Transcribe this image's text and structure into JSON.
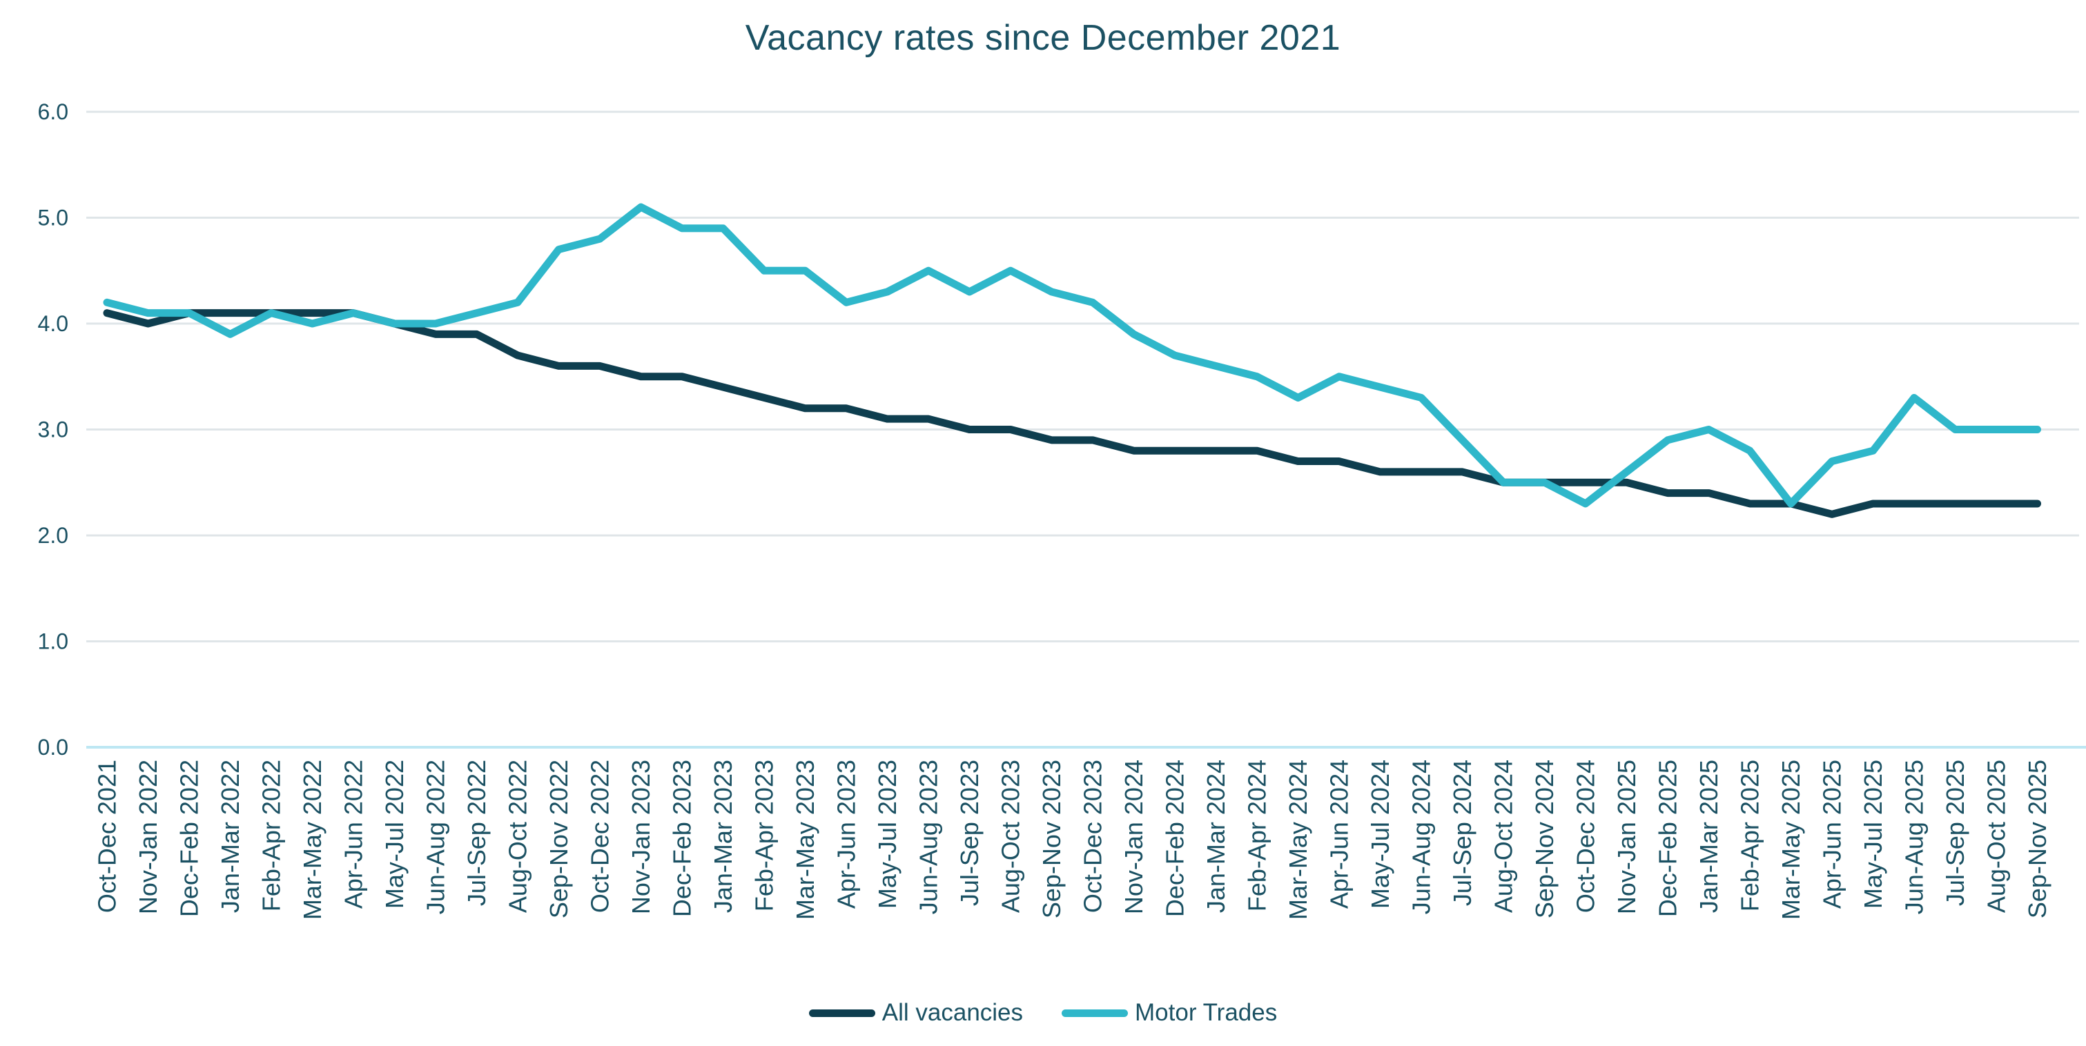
{
  "chart_data": {
    "type": "line",
    "title": "Vacancy rates since December 2021",
    "categories": [
      "Oct-Dec 2021",
      "Nov-Jan 2022",
      "Dec-Feb 2022",
      "Jan-Mar 2022",
      "Feb-Apr 2022",
      "Mar-May 2022",
      "Apr-Jun 2022",
      "May-Jul 2022",
      "Jun-Aug 2022",
      "Jul-Sep 2022",
      "Aug-Oct 2022",
      "Sep-Nov 2022",
      "Oct-Dec 2022",
      "Nov-Jan 2023",
      "Dec-Feb 2023",
      "Jan-Mar 2023",
      "Feb-Apr 2023",
      "Mar-May 2023",
      "Apr-Jun 2023",
      "May-Jul 2023",
      "Jun-Aug 2023",
      "Jul-Sep 2023",
      "Aug-Oct 2023",
      "Sep-Nov 2023",
      "Oct-Dec 2023",
      "Nov-Jan 2024",
      "Dec-Feb 2024",
      "Jan-Mar 2024",
      "Feb-Apr 2024",
      "Mar-May 2024",
      "Apr-Jun 2024",
      "May-Jul 2024",
      "Jun-Aug 2024",
      "Jul-Sep 2024",
      "Aug-Oct 2024",
      "Sep-Nov 2024",
      "Oct-Dec 2024",
      "Nov-Jan 2025",
      "Dec-Feb 2025",
      "Jan-Mar 2025",
      "Feb-Apr 2025",
      "Mar-May 2025",
      "Apr-Jun 2025",
      "May-Jul 2025",
      "Jun-Aug 2025",
      "Jul-Sep 2025",
      "Aug-Oct 2025",
      "Sep-Nov 2025"
    ],
    "series": [
      {
        "name": "All vacancies",
        "color": "#0E3E4F",
        "values": [
          4.1,
          4.0,
          4.1,
          4.1,
          4.1,
          4.1,
          4.1,
          4.0,
          3.9,
          3.9,
          3.7,
          3.6,
          3.6,
          3.5,
          3.5,
          3.4,
          3.3,
          3.2,
          3.2,
          3.1,
          3.1,
          3.0,
          3.0,
          2.9,
          2.9,
          2.8,
          2.8,
          2.8,
          2.8,
          2.7,
          2.7,
          2.6,
          2.6,
          2.6,
          2.5,
          2.5,
          2.5,
          2.5,
          2.4,
          2.4,
          2.3,
          2.3,
          2.2,
          2.3,
          2.3,
          2.3,
          2.3,
          2.3
        ]
      },
      {
        "name": "Motor Trades",
        "color": "#2FB7CA",
        "values": [
          4.2,
          4.1,
          4.1,
          3.9,
          4.1,
          4.0,
          4.1,
          4.0,
          4.0,
          4.1,
          4.2,
          4.7,
          4.8,
          5.1,
          4.9,
          4.9,
          4.5,
          4.5,
          4.2,
          4.3,
          4.5,
          4.3,
          4.5,
          4.3,
          4.2,
          3.9,
          3.7,
          3.6,
          3.5,
          3.3,
          3.5,
          3.4,
          3.3,
          2.9,
          2.5,
          2.5,
          2.3,
          2.6,
          2.9,
          3.0,
          2.8,
          2.3,
          2.7,
          2.8,
          3.3,
          3.0,
          3.0,
          3.0
        ]
      }
    ],
    "xlabel": "",
    "ylabel": "",
    "ylim": [
      0.0,
      6.0
    ],
    "ytick_labels": [
      "0.0",
      "1.0",
      "2.0",
      "3.0",
      "4.0",
      "5.0",
      "6.0"
    ],
    "grid": "horizontal",
    "legend_position": "bottom",
    "text_color": "#1B5163",
    "grid_color": "#DFE5E8",
    "baseline_color": "#BDE7F3",
    "background": "#FFFFFF"
  }
}
